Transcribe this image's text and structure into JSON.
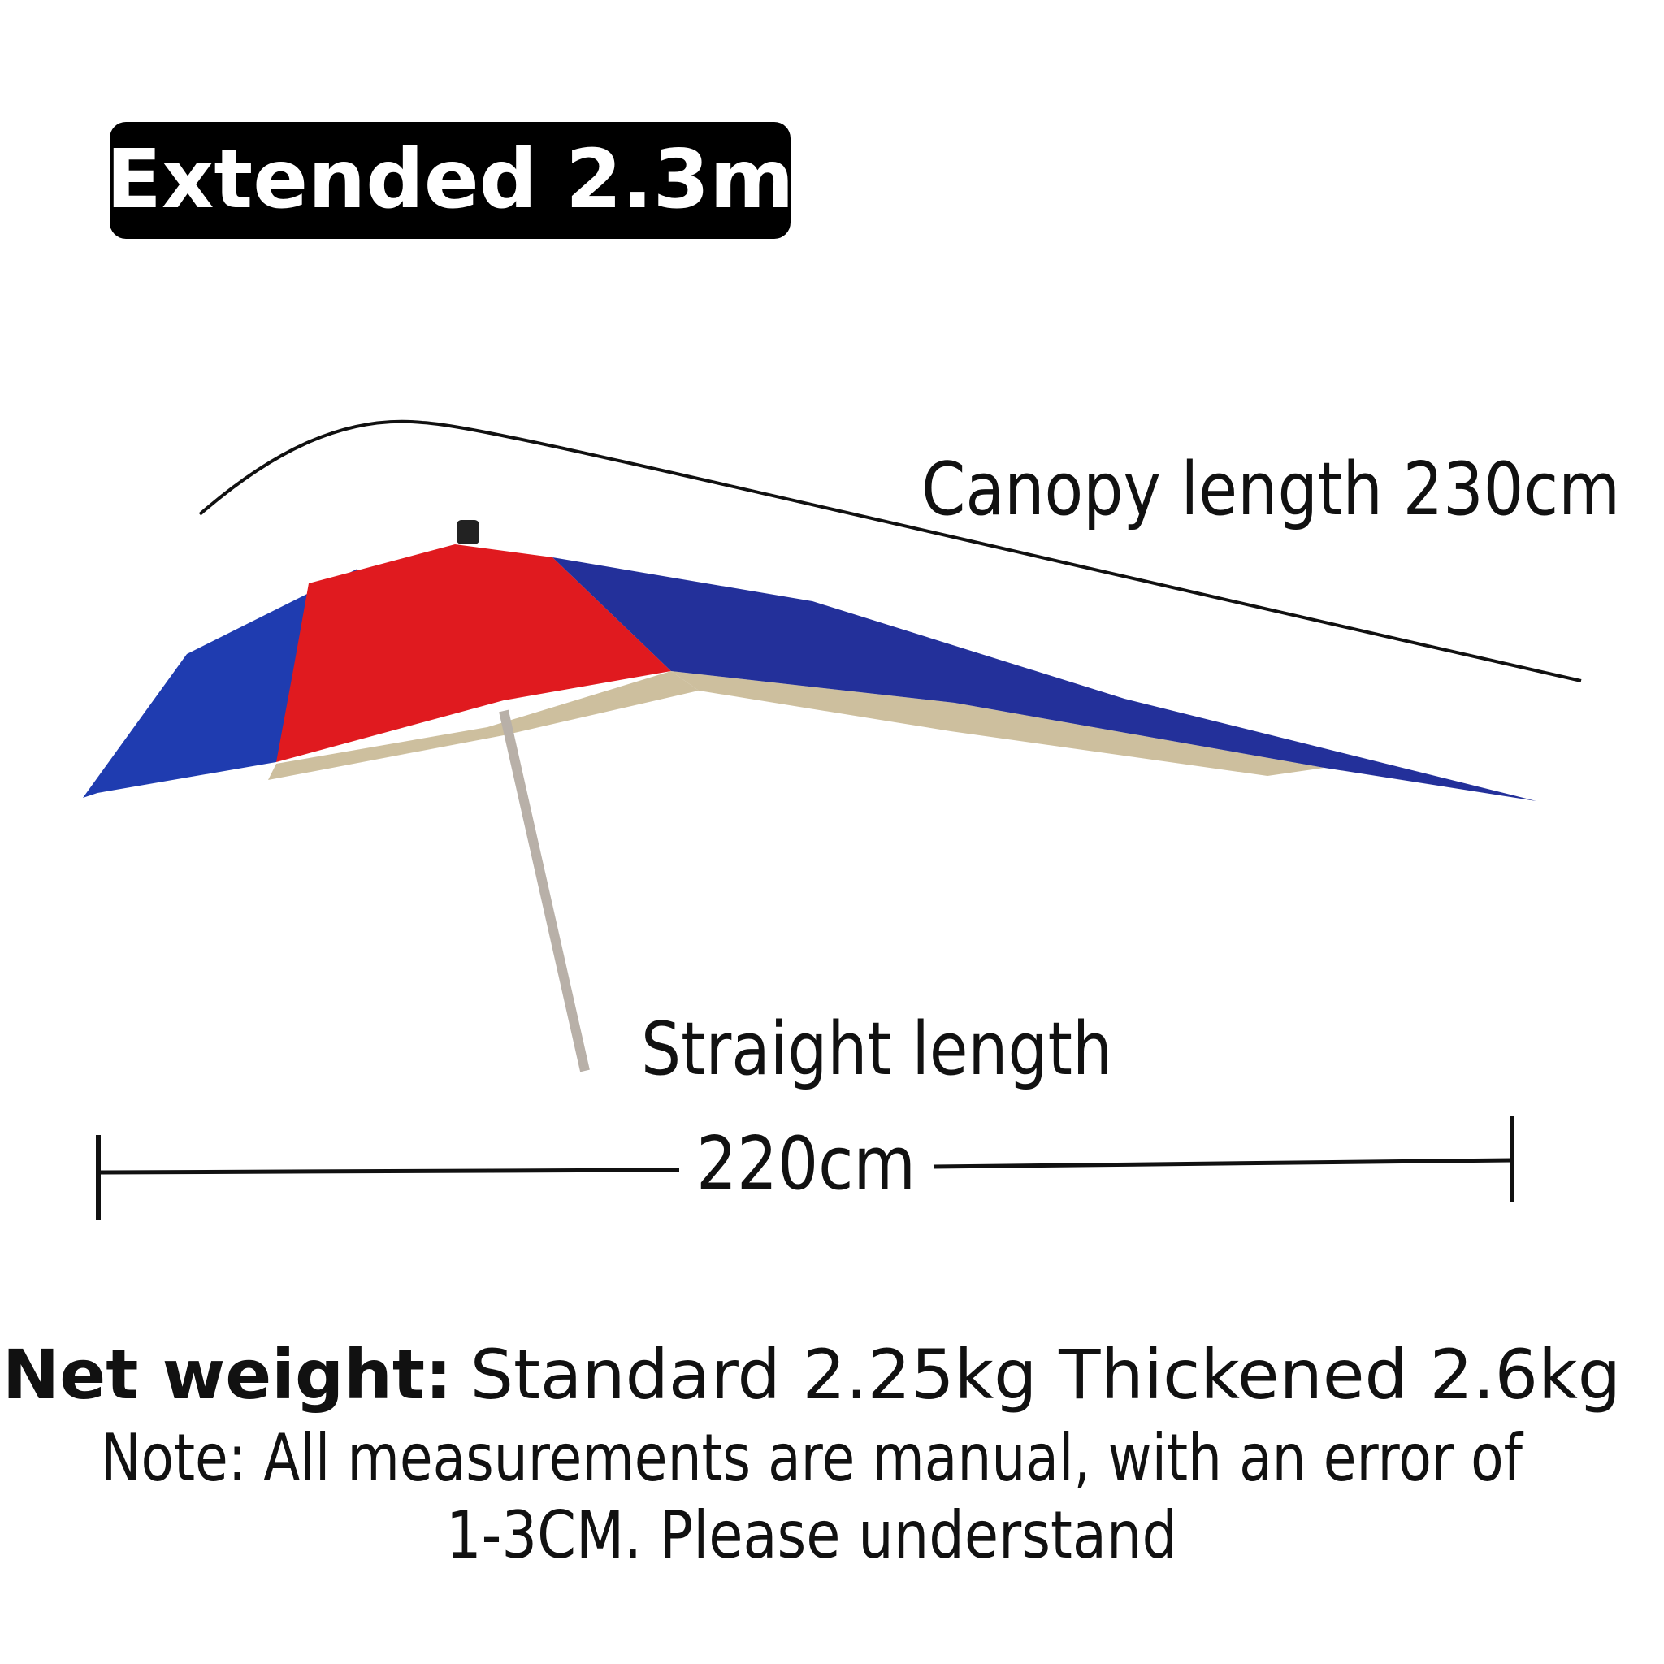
{
  "badge": "Extended 2.3m",
  "canopy_label": "Canopy length 230cm",
  "straight_label": "Straight length",
  "straight_value": "220cm",
  "weight": {
    "label": "Net weight:",
    "text": "Standard 2.25kg Thickened 2.6kg"
  },
  "note": [
    "Note: All measurements are manual, with an error of",
    "1-3CM. Please understand"
  ]
}
